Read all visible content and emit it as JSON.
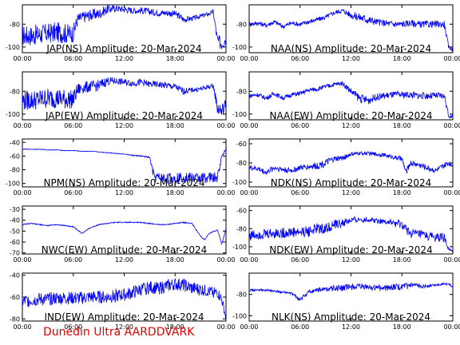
{
  "footer": "Dunedin Ultra AARDDVARK",
  "series_color": "#0000ff",
  "chart_data": [
    {
      "type": "line",
      "title": "JAP(NS) Amplitude: 20-Mar-2024",
      "ylim": [
        -105,
        -63
      ],
      "yticks": [
        -100,
        -80
      ],
      "xticks": [
        "00:00",
        "06:00",
        "12:00",
        "18:00",
        "00:00"
      ],
      "xlim_hours": [
        0,
        24
      ],
      "x": [
        0,
        1,
        2,
        3,
        4,
        5,
        6,
        6.5,
        7,
        8,
        9,
        10,
        11,
        12,
        13,
        14,
        15,
        16,
        17,
        18,
        18.5,
        19,
        20,
        21,
        22,
        22.5,
        23,
        23.5,
        24
      ],
      "values": [
        -90,
        -90,
        -89,
        -88,
        -87,
        -88,
        -88,
        -76,
        -74,
        -72,
        -71,
        -67,
        -66,
        -67,
        -68,
        -68,
        -69,
        -70,
        -70,
        -71,
        -73,
        -76,
        -75,
        -73,
        -71,
        -69,
        -95,
        -97,
        -92
      ],
      "spread": [
        9,
        9,
        9,
        9,
        9,
        9,
        8,
        6,
        5,
        5,
        5,
        4,
        3,
        3,
        3,
        3,
        3,
        3,
        3,
        3,
        3,
        3,
        2,
        2,
        2,
        2,
        6,
        6,
        6
      ]
    },
    {
      "type": "line",
      "title": "NAA(NS) Amplitude: 20-Mar-2024",
      "ylim": [
        -105,
        -63
      ],
      "yticks": [
        -100,
        -80
      ],
      "xticks": [
        "00:00",
        "06:00",
        "12:00",
        "18:00",
        "00:00"
      ],
      "xlim_hours": [
        0,
        24
      ],
      "x": [
        0,
        1,
        2,
        3,
        4,
        5,
        6,
        7,
        8,
        9,
        10,
        11,
        12,
        13,
        14,
        15,
        16,
        17,
        18,
        19,
        20,
        21,
        22,
        23,
        23.5,
        24
      ],
      "values": [
        -80,
        -79,
        -81,
        -78,
        -82,
        -79,
        -80,
        -78,
        -76,
        -74,
        -70,
        -68,
        -72,
        -74,
        -76,
        -78,
        -79,
        -80,
        -80,
        -79,
        -80,
        -80,
        -80,
        -80,
        -100,
        -102
      ],
      "spread": [
        2,
        2,
        2,
        2,
        2,
        2,
        2,
        2,
        2,
        2,
        2,
        2,
        3,
        4,
        4,
        3,
        3,
        3,
        3,
        3,
        3,
        3,
        3,
        3,
        2,
        2
      ]
    },
    {
      "type": "line",
      "title": "JAP(EW) Amplitude: 20-Mar-2024",
      "ylim": [
        -105,
        -63
      ],
      "yticks": [
        -100,
        -80
      ],
      "xticks": [
        "00:00",
        "06:00",
        "12:00",
        "18:00",
        "00:00"
      ],
      "xlim_hours": [
        0,
        24
      ],
      "x": [
        0,
        1,
        2,
        3,
        4,
        5,
        6,
        6.5,
        7,
        8,
        9,
        10,
        11,
        12,
        13,
        14,
        15,
        16,
        17,
        18,
        18.5,
        19,
        20,
        21,
        22,
        22.5,
        23,
        23.5,
        24
      ],
      "values": [
        -88,
        -88,
        -87,
        -86,
        -86,
        -87,
        -87,
        -79,
        -77,
        -76,
        -75,
        -71,
        -71,
        -72,
        -73,
        -72,
        -74,
        -74,
        -75,
        -76,
        -78,
        -80,
        -79,
        -78,
        -76,
        -75,
        -95,
        -97,
        -92
      ],
      "spread": [
        9,
        9,
        9,
        9,
        9,
        9,
        8,
        6,
        5,
        5,
        5,
        4,
        3,
        3,
        3,
        3,
        3,
        3,
        3,
        3,
        3,
        3,
        2,
        2,
        2,
        2,
        6,
        6,
        6
      ]
    },
    {
      "type": "line",
      "title": "NAA(EW) Amplitude: 20-Mar-2024",
      "ylim": [
        -105,
        -63
      ],
      "yticks": [
        -100,
        -80
      ],
      "xticks": [
        "00:00",
        "06:00",
        "12:00",
        "18:00",
        "00:00"
      ],
      "xlim_hours": [
        0,
        24
      ],
      "x": [
        0,
        1,
        2,
        3,
        4,
        5,
        6,
        7,
        8,
        9,
        10,
        11,
        12,
        13,
        14,
        15,
        16,
        17,
        18,
        19,
        20,
        21,
        22,
        23,
        23.5,
        24
      ],
      "values": [
        -84,
        -83,
        -86,
        -82,
        -86,
        -83,
        -82,
        -79,
        -78,
        -76,
        -74,
        -73,
        -80,
        -86,
        -88,
        -85,
        -84,
        -83,
        -83,
        -83,
        -84,
        -84,
        -84,
        -84,
        -101,
        -103
      ],
      "spread": [
        2,
        2,
        2,
        2,
        2,
        2,
        2,
        2,
        2,
        2,
        2,
        2,
        3,
        4,
        4,
        3,
        3,
        3,
        3,
        3,
        3,
        3,
        3,
        3,
        2,
        2
      ]
    },
    {
      "type": "line",
      "title": "NPM(NS) Amplitude: 20-Mar-2024",
      "ylim": [
        -105,
        -35
      ],
      "yticks": [
        -100,
        -80,
        -60,
        -40
      ],
      "xticks": [
        "00:00",
        "06:00",
        "12:00",
        "18:00",
        "00:00"
      ],
      "xlim_hours": [
        0,
        24
      ],
      "x": [
        0,
        1,
        2,
        3,
        4,
        5,
        6,
        7,
        8,
        9,
        10,
        11,
        12,
        13,
        14,
        15,
        15.5,
        16,
        17,
        18,
        19,
        20,
        21,
        22,
        23,
        23.5,
        24
      ],
      "values": [
        -50,
        -50,
        -50,
        -51,
        -51,
        -52,
        -52,
        -53,
        -53,
        -54,
        -55,
        -56,
        -57,
        -59,
        -60,
        -62,
        -90,
        -92,
        -93,
        -92,
        -91,
        -92,
        -92,
        -91,
        -92,
        -60,
        -50
      ],
      "spread": [
        0.5,
        0.5,
        0.5,
        0.5,
        0.5,
        0.5,
        0.5,
        0.5,
        0.5,
        0.5,
        0.5,
        0.5,
        0.5,
        1,
        1,
        1,
        8,
        8,
        8,
        8,
        8,
        8,
        8,
        8,
        8,
        2,
        2
      ]
    },
    {
      "type": "line",
      "title": "NDK(NS) Amplitude: 20-Mar-2024",
      "ylim": [
        -105,
        -55
      ],
      "yticks": [
        -100,
        -80,
        -60
      ],
      "xticks": [
        "00:00",
        "06:00",
        "12:00",
        "18:00",
        "00:00"
      ],
      "xlim_hours": [
        0,
        24
      ],
      "x": [
        0,
        1,
        2,
        3,
        4,
        5,
        6,
        7,
        8,
        9,
        10,
        11,
        12,
        13,
        14,
        15,
        16,
        17,
        18,
        18.5,
        19,
        20,
        21,
        22,
        23,
        23.5,
        24
      ],
      "values": [
        -85,
        -86,
        -90,
        -85,
        -87,
        -88,
        -85,
        -84,
        -83,
        -80,
        -76,
        -75,
        -71,
        -70,
        -70,
        -71,
        -72,
        -74,
        -76,
        -90,
        -80,
        -82,
        -85,
        -88,
        -83,
        -80,
        -82
      ],
      "spread": [
        3,
        3,
        3,
        3,
        3,
        3,
        3,
        3,
        4,
        4,
        3,
        3,
        2,
        2,
        2,
        2,
        2,
        2,
        3,
        3,
        3,
        3,
        3,
        3,
        3,
        3,
        3
      ]
    },
    {
      "type": "line",
      "title": "NWC(EW) Amplitude: 20-Mar-2024",
      "ylim": [
        -71,
        -27
      ],
      "yticks": [
        -70,
        -60,
        -50,
        -40,
        -30
      ],
      "xticks": [
        "00:00",
        "06:00",
        "12:00",
        "18:00",
        "00:00"
      ],
      "xlim_hours": [
        0,
        24
      ],
      "x": [
        0,
        1,
        2,
        3,
        4,
        5,
        6,
        7,
        8,
        9,
        10,
        11,
        12,
        13,
        14,
        15,
        16,
        17,
        18,
        19,
        20,
        21,
        21.5,
        22,
        23,
        23.5,
        24
      ],
      "values": [
        -44,
        -43,
        -44,
        -45,
        -44,
        -45,
        -46,
        -52,
        -47,
        -44,
        -43,
        -42,
        -42,
        -42,
        -42,
        -43,
        -44,
        -44,
        -43,
        -42,
        -43,
        -55,
        -58,
        -52,
        -49,
        -62,
        -48
      ],
      "spread": [
        0.5,
        0.5,
        0.5,
        0.5,
        0.5,
        0.5,
        0.5,
        0.5,
        0.5,
        0.5,
        0.5,
        0.5,
        0.5,
        0.5,
        0.5,
        0.5,
        0.5,
        0.5,
        0.5,
        0.5,
        0.5,
        0.5,
        0.5,
        0.5,
        0.5,
        0.5,
        0.5
      ]
    },
    {
      "type": "line",
      "title": "NDK(EW) Amplitude: 20-Mar-2024",
      "ylim": [
        -108,
        -55
      ],
      "yticks": [
        -100,
        -80,
        -60
      ],
      "xticks": [
        "00:00",
        "06:00",
        "12:00",
        "18:00",
        "00:00"
      ],
      "xlim_hours": [
        0,
        24
      ],
      "x": [
        0,
        1,
        2,
        3,
        4,
        5,
        6,
        7,
        8,
        9,
        10,
        11,
        12,
        13,
        14,
        15,
        16,
        17,
        18,
        19,
        20,
        21,
        22,
        23,
        23.5,
        24
      ],
      "values": [
        -88,
        -86,
        -86,
        -85,
        -85,
        -84,
        -84,
        -83,
        -80,
        -80,
        -76,
        -74,
        -71,
        -70,
        -70,
        -71,
        -72,
        -74,
        -76,
        -85,
        -86,
        -88,
        -90,
        -90,
        -103,
        -106
      ],
      "spread": [
        6,
        6,
        6,
        6,
        6,
        6,
        6,
        6,
        6,
        6,
        5,
        5,
        4,
        3,
        3,
        3,
        3,
        4,
        5,
        5,
        5,
        5,
        5,
        5,
        2,
        2
      ]
    },
    {
      "type": "line",
      "title": "IND(EW) Amplitude: 20-Mar-2024",
      "ylim": [
        -82,
        -38
      ],
      "yticks": [
        -80,
        -60,
        -40
      ],
      "xticks": [
        "00:00",
        "06:00",
        "12:00",
        "18:00",
        "00:00"
      ],
      "xlim_hours": [
        0,
        24
      ],
      "x": [
        0,
        1,
        2,
        3,
        4,
        5,
        6,
        7,
        8,
        9,
        10,
        11,
        12,
        13,
        14,
        15,
        16,
        17,
        18,
        19,
        20,
        21,
        22,
        23,
        23.5,
        24
      ],
      "values": [
        -64,
        -63,
        -62,
        -62,
        -61,
        -61,
        -61,
        -61,
        -60,
        -60,
        -60,
        -59,
        -58,
        -56,
        -53,
        -51,
        -52,
        -50,
        -48,
        -49,
        -52,
        -53,
        -55,
        -56,
        -62,
        -80
      ],
      "spread": [
        6,
        6,
        6,
        6,
        6,
        6,
        6,
        6,
        6,
        6,
        6,
        6,
        6,
        6,
        6,
        6,
        6,
        6,
        6,
        6,
        6,
        6,
        5,
        5,
        5,
        2
      ]
    },
    {
      "type": "line",
      "title": "NLK(NS) Amplitude: 20-Mar-2024",
      "ylim": [
        -105,
        -60
      ],
      "yticks": [
        -100,
        -80
      ],
      "xticks": [
        "00:00",
        "06:00",
        "12:00",
        "18:00",
        "00:00"
      ],
      "xlim_hours": [
        0,
        24
      ],
      "x": [
        0,
        1,
        2,
        3,
        4,
        5,
        6,
        7,
        8,
        9,
        10,
        11,
        12,
        13,
        14,
        15,
        16,
        17,
        18,
        19,
        20,
        21,
        22,
        23,
        23.5,
        24
      ],
      "values": [
        -76,
        -76,
        -76,
        -77,
        -78,
        -79,
        -85,
        -78,
        -76,
        -75,
        -74,
        -74,
        -73,
        -73,
        -73,
        -74,
        -74,
        -73,
        -73,
        -72,
        -72,
        -72,
        -71,
        -70,
        -70,
        -73
      ],
      "spread": [
        1,
        1,
        1,
        1,
        1,
        1,
        2,
        2,
        2,
        2,
        3,
        3,
        3,
        3,
        3,
        3,
        3,
        3,
        3,
        3,
        2,
        2,
        1,
        1,
        1,
        1
      ]
    }
  ]
}
